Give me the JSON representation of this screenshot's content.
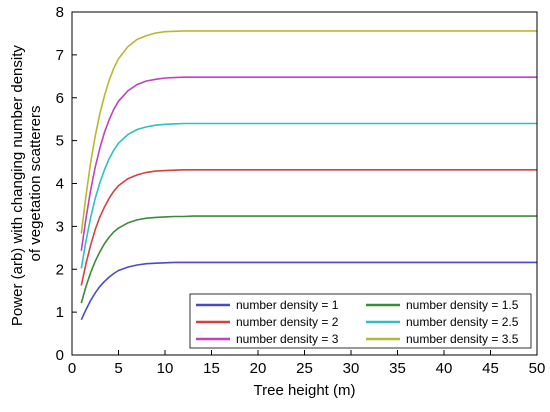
{
  "chart_data": {
    "type": "line",
    "xlabel": "Tree height (m)",
    "ylabel_lines": [
      "Power (arb) with changing number density",
      "of vegetation scatterers"
    ],
    "xlim": [
      0,
      50
    ],
    "ylim": [
      0,
      8
    ],
    "xticks": [
      0,
      5,
      10,
      15,
      20,
      25,
      30,
      35,
      40,
      45,
      50
    ],
    "yticks": [
      0,
      1,
      2,
      3,
      4,
      5,
      6,
      7,
      8
    ],
    "grid": false,
    "legend_position": "bottom-right",
    "legend_columns": 2,
    "x": [
      1,
      1.5,
      2,
      2.5,
      3,
      3.5,
      4,
      4.5,
      5,
      6,
      7,
      8,
      9,
      10,
      11,
      12,
      13,
      14,
      15,
      17.5,
      20,
      25,
      30,
      35,
      40,
      45,
      50
    ],
    "series": [
      {
        "name": "number density = 1",
        "color": "#4a4ac8",
        "values": [
          0.82,
          1.06,
          1.27,
          1.45,
          1.6,
          1.72,
          1.82,
          1.9,
          1.97,
          2.05,
          2.1,
          2.13,
          2.14,
          2.15,
          2.16,
          2.16,
          2.16,
          2.16,
          2.16,
          2.16,
          2.16,
          2.16,
          2.16,
          2.16,
          2.16,
          2.16,
          2.16
        ]
      },
      {
        "name": "number density = 1.5",
        "color": "#3c8a3c",
        "values": [
          1.21,
          1.6,
          1.92,
          2.19,
          2.41,
          2.6,
          2.75,
          2.87,
          2.96,
          3.08,
          3.15,
          3.19,
          3.21,
          3.22,
          3.23,
          3.23,
          3.24,
          3.24,
          3.24,
          3.24,
          3.24,
          3.24,
          3.24,
          3.24,
          3.24,
          3.24,
          3.24
        ]
      },
      {
        "name": "number density = 2",
        "color": "#d84040",
        "values": [
          1.62,
          2.13,
          2.56,
          2.93,
          3.22,
          3.46,
          3.66,
          3.82,
          3.95,
          4.11,
          4.2,
          4.26,
          4.29,
          4.3,
          4.31,
          4.32,
          4.32,
          4.32,
          4.32,
          4.32,
          4.32,
          4.32,
          4.32,
          4.32,
          4.32,
          4.32,
          4.32
        ]
      },
      {
        "name": "number density = 2.5",
        "color": "#2fc0c0",
        "values": [
          2.02,
          2.66,
          3.2,
          3.66,
          4.02,
          4.33,
          4.58,
          4.78,
          4.94,
          5.14,
          5.26,
          5.32,
          5.36,
          5.38,
          5.39,
          5.4,
          5.4,
          5.4,
          5.4,
          5.4,
          5.4,
          5.4,
          5.4,
          5.4,
          5.4,
          5.4,
          5.4
        ]
      },
      {
        "name": "number density = 3",
        "color": "#c040c0",
        "values": [
          2.43,
          3.19,
          3.84,
          4.39,
          4.83,
          5.2,
          5.49,
          5.73,
          5.92,
          6.16,
          6.31,
          6.39,
          6.43,
          6.46,
          6.47,
          6.48,
          6.48,
          6.48,
          6.48,
          6.48,
          6.48,
          6.48,
          6.48,
          6.48,
          6.48,
          6.48,
          6.48
        ]
      },
      {
        "name": "number density = 3.5",
        "color": "#b8b830",
        "values": [
          2.83,
          3.72,
          4.48,
          5.12,
          5.63,
          6.06,
          6.41,
          6.69,
          6.91,
          7.19,
          7.36,
          7.45,
          7.51,
          7.54,
          7.55,
          7.56,
          7.56,
          7.56,
          7.56,
          7.56,
          7.56,
          7.56,
          7.56,
          7.56,
          7.56,
          7.56,
          7.56
        ]
      }
    ]
  }
}
